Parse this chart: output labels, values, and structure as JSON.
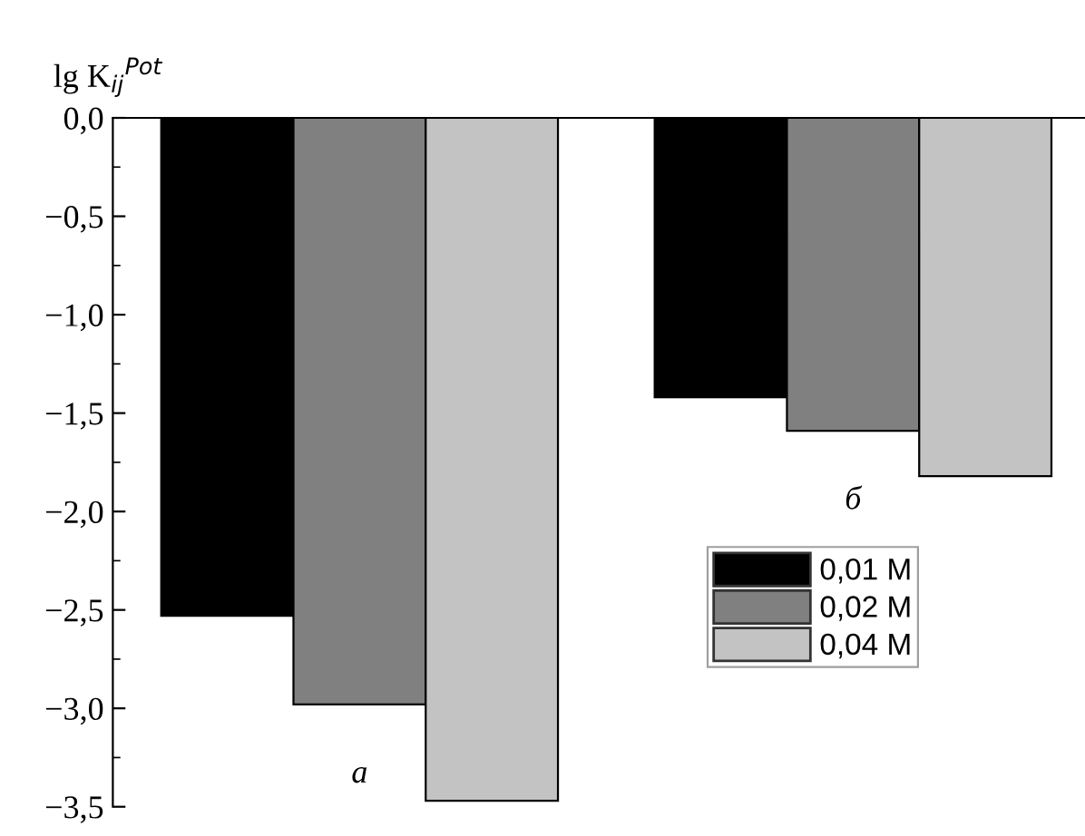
{
  "chart_data": {
    "type": "bar",
    "ylabel": "lg K$_{ij}$$^{Pot}$",
    "categories": [
      "а",
      "б"
    ],
    "series": [
      {
        "name": "0,01 M",
        "color": "#000000",
        "values": [
          -2.53,
          -1.42
        ]
      },
      {
        "name": "0,02 M",
        "color": "#808080",
        "values": [
          -2.98,
          -1.59
        ]
      },
      {
        "name": "0,04 M",
        "color": "#c3c3c3",
        "values": [
          -3.47,
          -1.82
        ]
      }
    ],
    "ylim": [
      -3.5,
      0
    ],
    "yticks": [
      {
        "value": 0,
        "label": "0,0"
      },
      {
        "value": -0.5,
        "label": "−0,5"
      },
      {
        "value": -1,
        "label": "−1,0"
      },
      {
        "value": -1.5,
        "label": "−1,5"
      },
      {
        "value": -2,
        "label": "−2,0"
      },
      {
        "value": -2.5,
        "label": "−2,5"
      },
      {
        "value": -3,
        "label": "−3,0"
      },
      {
        "value": -3.5,
        "label": "−3,5"
      }
    ],
    "legend": "right",
    "grid": false
  }
}
